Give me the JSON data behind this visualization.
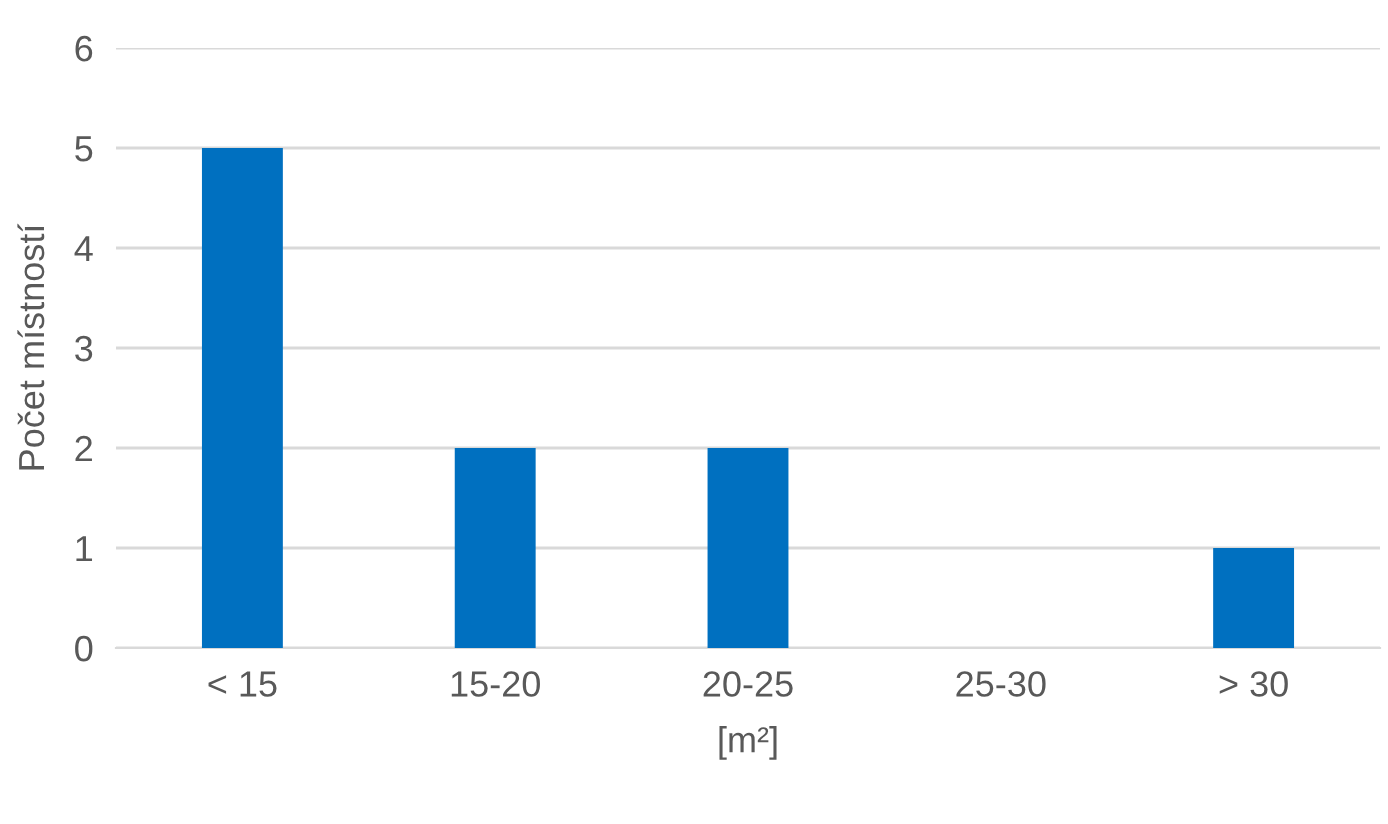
{
  "chart_data": {
    "type": "bar",
    "xlabel": "[m²]",
    "ylabel": "Počet místností",
    "categories": [
      "< 15",
      "15-20",
      "20-25",
      "25-30",
      "> 30"
    ],
    "values": [
      5,
      2,
      2,
      0,
      1
    ],
    "color": "#0070c0",
    "ylim": [
      0,
      6
    ],
    "yticks": [
      0,
      1,
      2,
      3,
      4,
      5,
      6
    ],
    "grid": "y",
    "legend": false
  }
}
